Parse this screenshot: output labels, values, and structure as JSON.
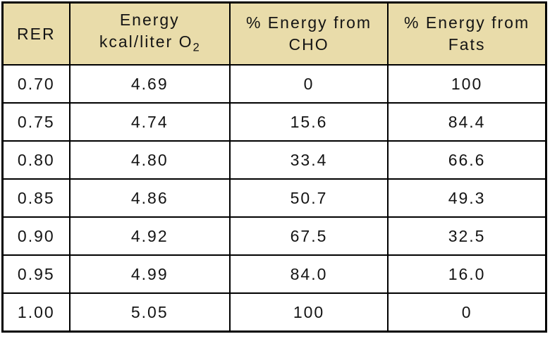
{
  "page": {
    "background_color": "#ffffff",
    "header_bg_color": "#e9dcaa",
    "border_color": "#000000",
    "text_color": "#141414"
  },
  "table": {
    "headers": [
      {
        "line1": "RER",
        "line2": "",
        "line2_sub": ""
      },
      {
        "line1": "Energy",
        "line2": "kcal/liter O",
        "line2_sub": "2"
      },
      {
        "line1": "% Energy from",
        "line2": "CHO",
        "line2_sub": ""
      },
      {
        "line1": "% Energy from",
        "line2": "Fats",
        "line2_sub": ""
      }
    ],
    "rows": [
      [
        "0.70",
        "4.69",
        "0",
        "100"
      ],
      [
        "0.75",
        "4.74",
        "15.6",
        "84.4"
      ],
      [
        "0.80",
        "4.80",
        "33.4",
        "66.6"
      ],
      [
        "0.85",
        "4.86",
        "50.7",
        "49.3"
      ],
      [
        "0.90",
        "4.92",
        "67.5",
        "32.5"
      ],
      [
        "0.95",
        "4.99",
        "84.0",
        "16.0"
      ],
      [
        "1.00",
        "5.05",
        "100",
        "0"
      ]
    ]
  },
  "chart_data": {
    "type": "table",
    "title": "",
    "columns": [
      "RER",
      "Energy kcal/liter O2",
      "% Energy from CHO",
      "% Energy from Fats"
    ],
    "rows": [
      [
        0.7,
        4.69,
        0,
        100
      ],
      [
        0.75,
        4.74,
        15.6,
        84.4
      ],
      [
        0.8,
        4.8,
        33.4,
        66.6
      ],
      [
        0.85,
        4.86,
        50.7,
        49.3
      ],
      [
        0.9,
        4.92,
        67.5,
        32.5
      ],
      [
        0.95,
        4.99,
        84.0,
        16.0
      ],
      [
        1.0,
        5.05,
        100,
        0
      ]
    ],
    "layout_hints": {
      "header_background": "#e9dcaa",
      "grid": "on",
      "alignment": "center"
    }
  }
}
